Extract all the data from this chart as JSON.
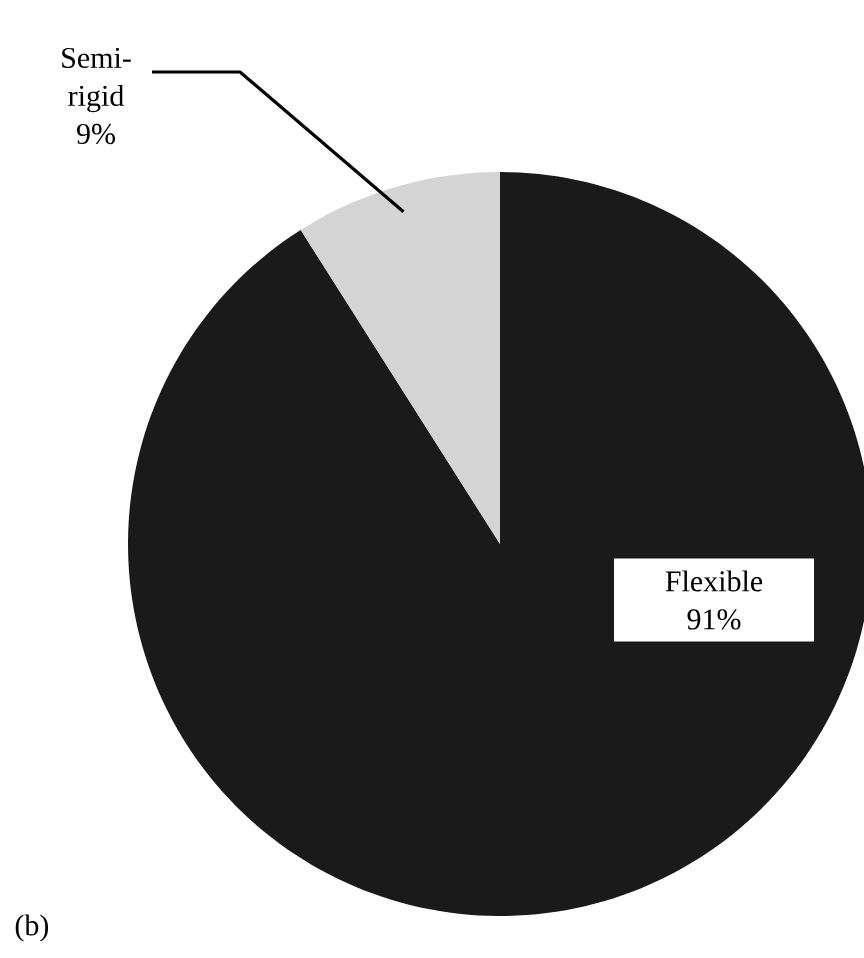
{
  "chart_data": {
    "type": "pie",
    "categories": [
      "Flexible",
      "Semi-rigid"
    ],
    "values": [
      91,
      9
    ],
    "value_labels": [
      "91%",
      "9%"
    ],
    "colors": [
      "#1a1a1a",
      "#d4d4d4"
    ],
    "annotations": [
      "(b)"
    ]
  }
}
